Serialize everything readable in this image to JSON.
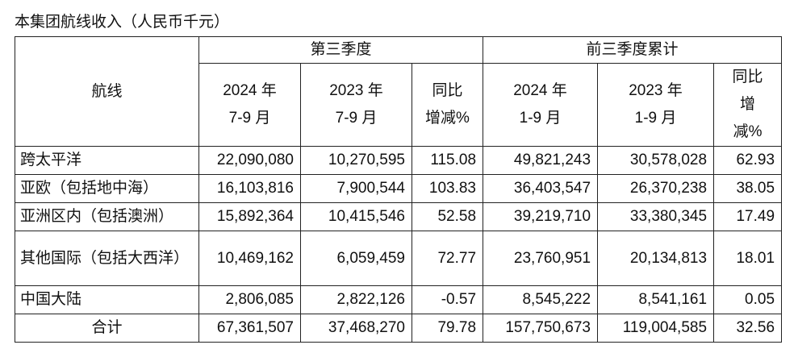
{
  "caption": "本集团航线收入（人民币千元）",
  "table": {
    "header": {
      "route": "航线",
      "groups": [
        "第三季度",
        "前三季度累计"
      ],
      "columns": [
        [
          "2024 年",
          "7-9 月"
        ],
        [
          "2023 年",
          "7-9 月"
        ],
        [
          "同比",
          "增减%"
        ],
        [
          "2024 年",
          "1-9 月"
        ],
        [
          "2023 年",
          "1-9 月"
        ],
        [
          "同比",
          "增",
          "减%"
        ]
      ]
    },
    "rows": [
      [
        "跨太平洋",
        "22,090,080",
        "10,270,595",
        "115.08",
        "49,821,243",
        "30,578,028",
        "62.93"
      ],
      [
        "亚欧（包括地中海）",
        "16,103,816",
        "7,900,544",
        "103.83",
        "36,403,547",
        "26,370,238",
        "38.05"
      ],
      [
        "亚洲区内（包括澳洲）",
        "15,892,364",
        "10,415,546",
        "52.58",
        "39,219,710",
        "33,380,345",
        "17.49"
      ],
      [
        "其他国际（包括大西洋）",
        "10,469,162",
        "6,059,459",
        "72.77",
        "23,760,951",
        "20,134,813",
        "18.01"
      ],
      [
        "中国大陆",
        "2,806,085",
        "2,822,126",
        "-0.57",
        "8,545,222",
        "8,541,161",
        "0.05"
      ],
      [
        "合计",
        "67,361,507",
        "37,468,270",
        "79.78",
        "157,750,673",
        "119,004,585",
        "32.56"
      ]
    ]
  }
}
